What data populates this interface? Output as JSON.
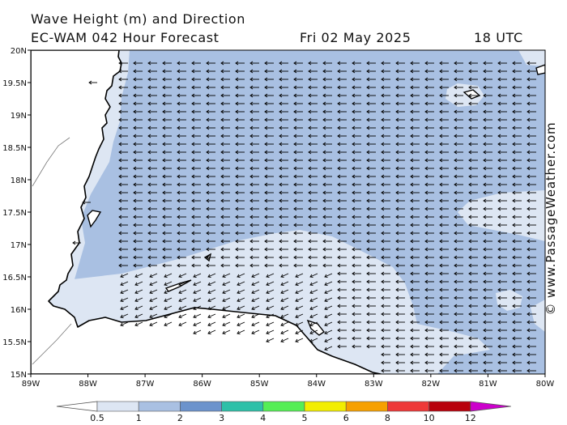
{
  "header": {
    "line1": "Wave Height (m) and Direction",
    "line2": "EC-WAM 042 Hour Forecast",
    "date": "Fri 02 May 2025",
    "time": "18 UTC"
  },
  "credit": "© www.PassageWeather.com",
  "axes": {
    "lat_labels": [
      "20N",
      "19.5N",
      "19N",
      "18.5N",
      "18N",
      "17.5N",
      "17N",
      "16.5N",
      "16N",
      "15.5N",
      "15N"
    ],
    "lon_labels": [
      "89W",
      "88W",
      "87W",
      "86W",
      "85W",
      "84W",
      "83W",
      "82W",
      "81W",
      "80W"
    ]
  },
  "legend": {
    "labels": [
      "0.5",
      "1",
      "2",
      "3",
      "4",
      "5",
      "6",
      "8",
      "10",
      "12"
    ],
    "colors": [
      "#dde6f3",
      "#a9c0e2",
      "#6c93cc",
      "#2ec0a8",
      "#55ee55",
      "#f2ee00",
      "#f6a000",
      "#ee3838",
      "#b8000c",
      "#cc00cc"
    ]
  },
  "colors": {
    "sea_light": "#dde6f3",
    "sea_main": "#a9c0e2",
    "land": "#ffffff",
    "coast": "#000000",
    "arrow": "#000000"
  },
  "wind": {
    "direction": "from east (westward arrows)"
  }
}
